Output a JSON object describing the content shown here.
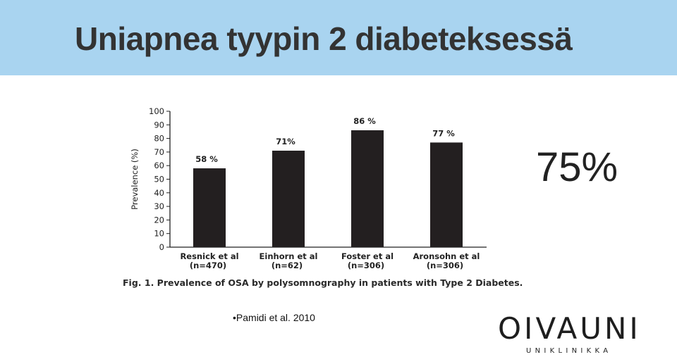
{
  "header": {
    "title": "Uniapnea tyypin 2 diabeteksessä",
    "bg_color": "#a9d4f0"
  },
  "chart_data": {
    "type": "bar",
    "categories": [
      [
        "Resnick et al",
        "(n=470)"
      ],
      [
        "Einhorn et al",
        "(n=62)"
      ],
      [
        "Foster et al",
        "(n=306)"
      ],
      [
        "Aronsohn et al",
        "(n=306)"
      ]
    ],
    "values": [
      58,
      71,
      86,
      77
    ],
    "data_labels": [
      "58 %",
      "71%",
      "86 %",
      "77 %"
    ],
    "ylabel": "Prevalence (%)",
    "ylim": [
      0,
      100
    ],
    "yticks": [
      0,
      10,
      20,
      30,
      40,
      50,
      60,
      70,
      80,
      90,
      100
    ],
    "bar_color": "#231f20",
    "grid": false,
    "caption": "Fig. 1. Prevalence of OSA by polysomnography in patients with Type 2 Diabetes."
  },
  "highlight": {
    "stat": "75%"
  },
  "citation": "•Pamidi et al. 2010",
  "logo": {
    "name": "OIVAUNI",
    "subtitle": "UNIKLINIKKA"
  }
}
